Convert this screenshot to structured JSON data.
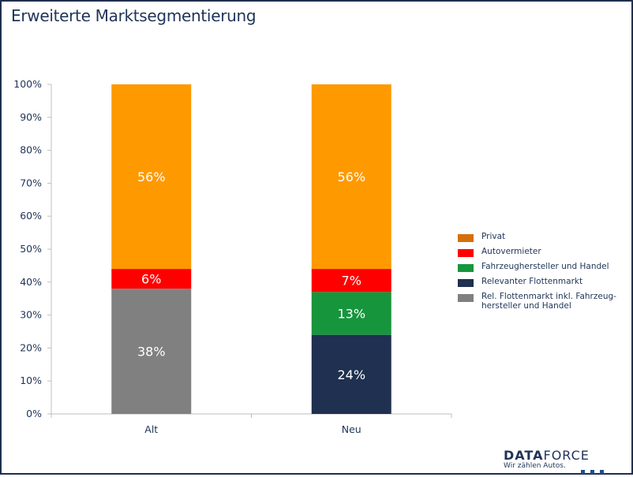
{
  "title": "Erweiterte Marktsegmentierung",
  "chart_data": {
    "type": "bar",
    "stacked": true,
    "categories": [
      "Alt",
      "Neu"
    ],
    "yticks": [
      "0%",
      "10%",
      "20%",
      "30%",
      "40%",
      "50%",
      "60%",
      "70%",
      "80%",
      "90%",
      "100%"
    ],
    "ylim": [
      0,
      100
    ],
    "series": [
      {
        "name": "Rel. Flottenmarkt inkl. Fahrzeug-hersteller und Handel",
        "color": "#808080",
        "values": [
          38,
          0
        ],
        "labels": [
          "38%",
          ""
        ]
      },
      {
        "name": "Relevanter Flottenmarkt",
        "color": "#1f3050",
        "values": [
          0,
          24
        ],
        "labels": [
          "",
          "24%"
        ]
      },
      {
        "name": "Fahrzeughersteller und Handel",
        "color": "#17953d",
        "values": [
          0,
          13
        ],
        "labels": [
          "",
          "13%"
        ]
      },
      {
        "name": "Autovermieter",
        "color": "#ff0000",
        "values": [
          6,
          7
        ],
        "labels": [
          "6%",
          "7%"
        ]
      },
      {
        "name": "Privat",
        "color": "#ff9900",
        "values": [
          56,
          56
        ],
        "labels": [
          "56%",
          "56%"
        ]
      }
    ],
    "legend_position": "right"
  },
  "legend": [
    {
      "label": "Privat",
      "color": "#d4700a"
    },
    {
      "label": "Autovermieter",
      "color": "#ff0000"
    },
    {
      "label": "Fahrzeughersteller und Handel",
      "color": "#17953d"
    },
    {
      "label": "Relevanter Flottenmarkt",
      "color": "#1f3050"
    },
    {
      "label": "Rel. Flottenmarkt inkl. Fahrzeug-hersteller und Handel",
      "color": "#808080"
    }
  ],
  "logo": {
    "brand_bold": "DATA",
    "brand_light": "FORCE",
    "tagline": "Wir zählen Autos."
  }
}
